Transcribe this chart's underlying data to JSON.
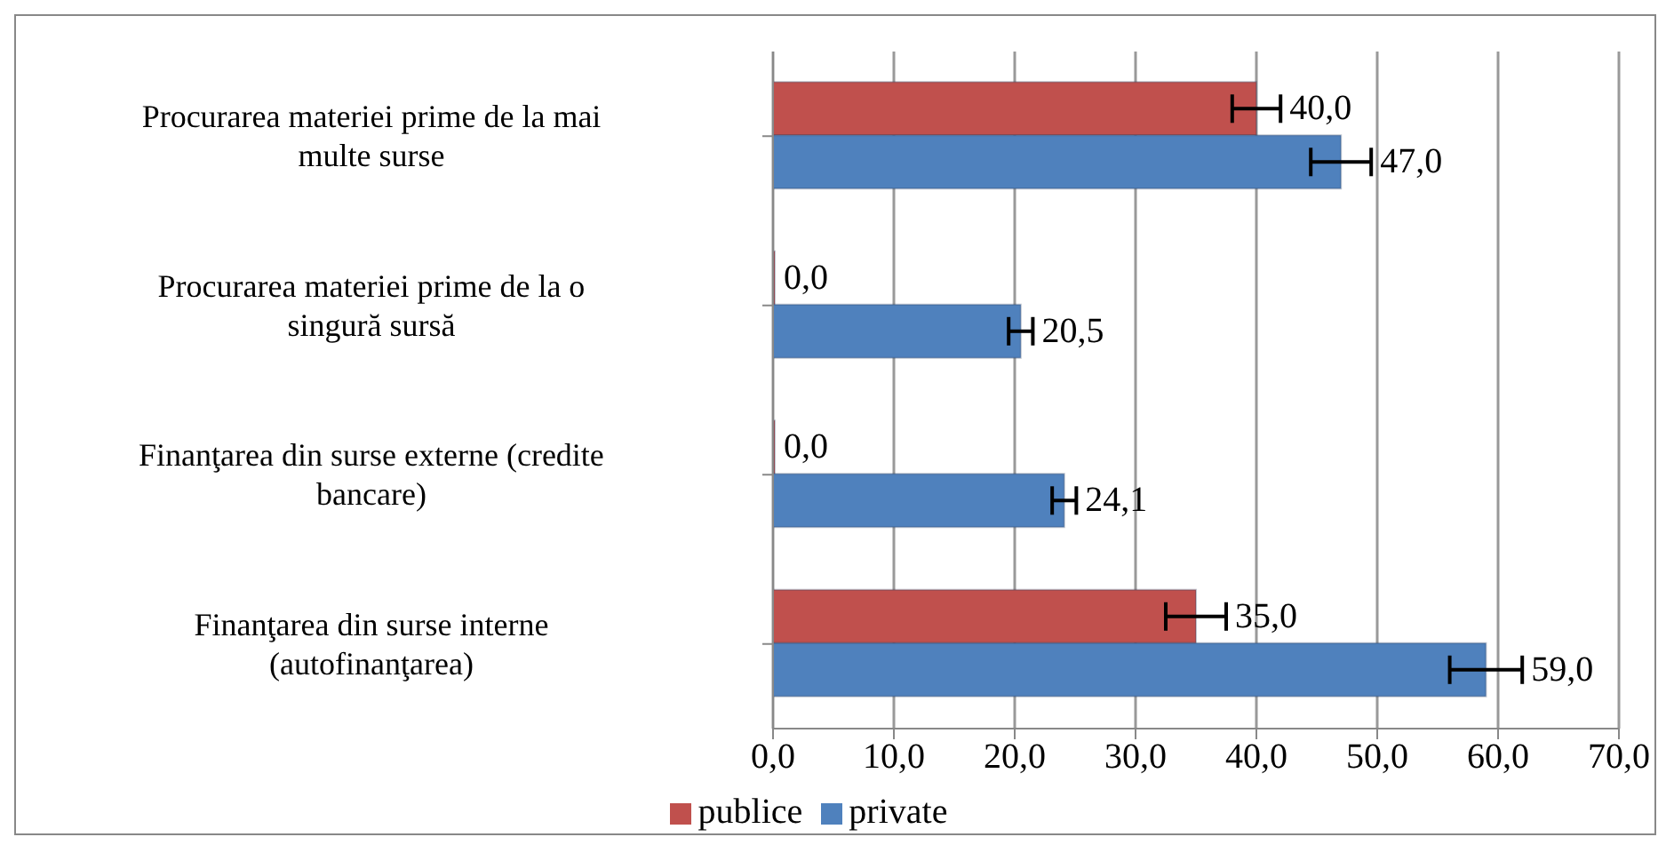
{
  "chart_data": {
    "type": "bar",
    "orientation": "horizontal",
    "categories": [
      "Procurarea materiei prime de la mai multe surse",
      "Procurarea materiei prime de la o singură sursă",
      "Finanţarea din surse externe (credite bancare)",
      "Finanţarea din surse interne (autofinanţarea)"
    ],
    "series": [
      {
        "name": "publice",
        "color": "#c0504d",
        "values": [
          40.0,
          0.0,
          0.0,
          35.0
        ],
        "errors": [
          2,
          null,
          null,
          2.5
        ],
        "value_labels": [
          "40,0",
          "0,0",
          "0,0",
          "35,0"
        ]
      },
      {
        "name": "private",
        "color": "#4f81bd",
        "values": [
          47.0,
          20.5,
          24.1,
          59.0
        ],
        "errors": [
          2.5,
          1,
          1,
          3
        ],
        "value_labels": [
          "47,0",
          "20,5",
          "24,1",
          "59,0"
        ]
      }
    ],
    "xlim": [
      0,
      70
    ],
    "xticks": [
      {
        "value": 0,
        "label": "0,0"
      },
      {
        "value": 10,
        "label": "10,0"
      },
      {
        "value": 20,
        "label": "20,0"
      },
      {
        "value": 30,
        "label": "30,0"
      },
      {
        "value": 40,
        "label": "40,0"
      },
      {
        "value": 50,
        "label": "50,0"
      },
      {
        "value": 60,
        "label": "60,0"
      },
      {
        "value": 70,
        "label": "70,0"
      }
    ],
    "grid": "x",
    "legend": "bottom"
  }
}
